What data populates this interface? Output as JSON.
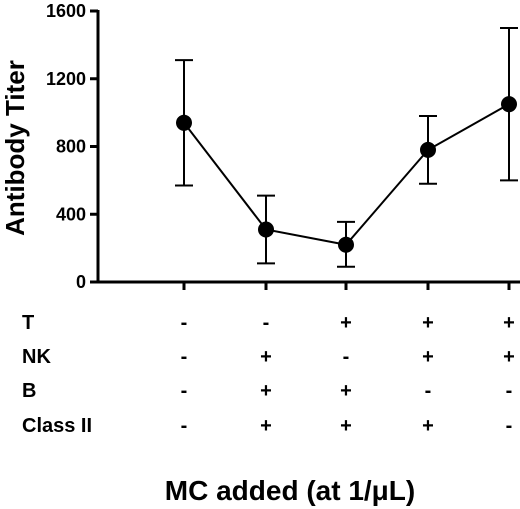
{
  "chart_data": {
    "type": "line",
    "ylabel": "Antibody Titer",
    "xlabel": "MC added (at 1/μL)",
    "ylim": [
      0,
      1600
    ],
    "yticks": [
      0,
      400,
      800,
      1200,
      1600
    ],
    "x": [
      1,
      2,
      3,
      4,
      5
    ],
    "series": [
      {
        "values": [
          940,
          310,
          220,
          780,
          1050
        ],
        "error_low": [
          570,
          110,
          90,
          580,
          600
        ],
        "error_high": [
          1310,
          510,
          355,
          980,
          1500
        ]
      }
    ],
    "condition_table": {
      "rows": [
        {
          "label": "T",
          "signs": [
            "-",
            "-",
            "+",
            "+",
            "+"
          ]
        },
        {
          "label": "NK",
          "signs": [
            "-",
            "+",
            "-",
            "+",
            "+"
          ]
        },
        {
          "label": "B",
          "signs": [
            "-",
            "+",
            "+",
            "-",
            "-"
          ]
        },
        {
          "label": "Class II",
          "signs": [
            "-",
            "+",
            "+",
            "+",
            "-"
          ]
        }
      ]
    },
    "grid": false,
    "legend": "none",
    "colors": {
      "line": "#000000",
      "marker": "#000000"
    }
  }
}
